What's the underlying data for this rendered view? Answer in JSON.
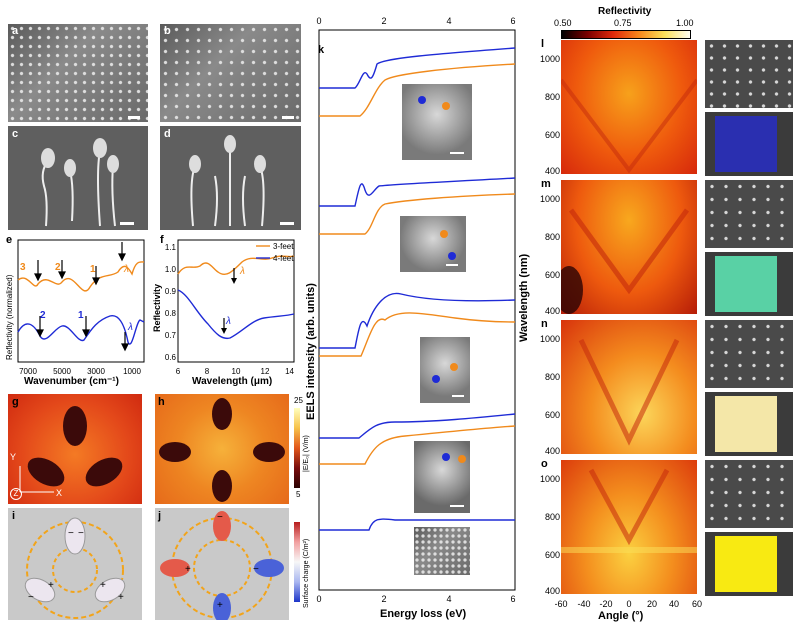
{
  "labels": {
    "a": "a",
    "b": "b",
    "c": "c",
    "d": "d",
    "e": "e",
    "f": "f",
    "g": "g",
    "h": "h",
    "i": "i",
    "j": "j",
    "k": "k",
    "l": "l",
    "m": "m",
    "n": "n",
    "o": "o"
  },
  "panel_e": {
    "ylabel": "Reflectivity (normalized)",
    "xlabel": "Wavenumber (cm⁻¹)",
    "xticks": [
      "7000",
      "5000",
      "3000",
      "1000"
    ],
    "peaks_top": [
      "3",
      "2",
      "1"
    ],
    "peaks_bottom": [
      "2",
      "1"
    ],
    "lambda": "λ",
    "lambda_sub": "T"
  },
  "panel_f": {
    "ylabel": "Reflectivity",
    "xlabel": "Wavelength (μm)",
    "xticks": [
      "6",
      "8",
      "10",
      "12",
      "14"
    ],
    "yticks": [
      "1.1",
      "1.0",
      "0.9",
      "0.8",
      "0.7",
      "0.6"
    ],
    "legend": [
      "3-feet",
      "4-feet"
    ],
    "lambda": "λ",
    "lambda_sub": "T"
  },
  "panel_gh": {
    "colorbar_title": "|E/E₀| (V/m)",
    "cb_max": "25",
    "cb_min": "5",
    "axis_y": "Y",
    "axis_z": "Z",
    "axis_x": "X"
  },
  "panel_ij": {
    "colorbar_title": "Surface charge (C/m²)",
    "plus": "+",
    "minus": "−"
  },
  "panel_k": {
    "ylabel": "EELS intensity (arb. units)",
    "xlabel": "Energy loss (eV)",
    "xticks": [
      "0",
      "2",
      "4",
      "6"
    ],
    "top_ticks": [
      "0",
      "2",
      "4",
      "6"
    ]
  },
  "panel_lmno": {
    "colorbar_label": "Reflectivity",
    "cb_ticks": [
      "0.50",
      "0.75",
      "1.00"
    ],
    "ylabel": "Wavelength (nm)",
    "xlabel": "Angle (°)",
    "yticks": [
      "1000",
      "800",
      "600",
      "400"
    ],
    "xticks": [
      "-60",
      "-40",
      "-20",
      "0",
      "20",
      "40",
      "60"
    ]
  },
  "colors": {
    "orange": "#f08a1c",
    "blue": "#1f2bd6",
    "inset_l": "#2a2fb0",
    "inset_m": "#59d1a5",
    "inset_n": "#f4e7a8",
    "inset_o": "#f8ea12"
  }
}
